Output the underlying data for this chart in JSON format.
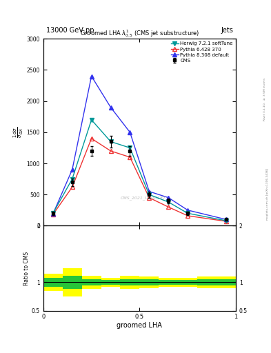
{
  "title_main": "13000 GeV pp",
  "title_right": "Jets",
  "plot_title": "Groomed LHA $\\lambda^{1}_{0.5}$ (CMS jet substructure)",
  "watermark": "CMS_2021_I1920187",
  "xlabel": "groomed LHA",
  "ylabel_ratio": "Ratio to CMS",
  "right_label": "Rivet 3.1.10, $\\geq$ 3.5M events",
  "right_label2": "mcplots.cern.ch [arXiv:1306.3436]",
  "x_centers": [
    0.05,
    0.15,
    0.25,
    0.35,
    0.45,
    0.55,
    0.65,
    0.75,
    0.95
  ],
  "x_edges": [
    0.0,
    0.1,
    0.2,
    0.3,
    0.4,
    0.5,
    0.6,
    0.7,
    0.8,
    1.0
  ],
  "cms_values": [
    200,
    700,
    1200,
    1350,
    1200,
    500,
    400,
    200,
    100
  ],
  "cms_errors": [
    30,
    60,
    80,
    90,
    80,
    50,
    40,
    30,
    20
  ],
  "herwig_values": [
    200,
    750,
    1700,
    1350,
    1250,
    500,
    380,
    200,
    80
  ],
  "pythia6_values": [
    180,
    620,
    1400,
    1200,
    1100,
    450,
    300,
    160,
    70
  ],
  "pythia8_values": [
    190,
    900,
    2400,
    1900,
    1500,
    550,
    450,
    250,
    100
  ],
  "ratio_yellow_lo": [
    0.85,
    0.75,
    0.88,
    0.92,
    0.88,
    0.9,
    0.92,
    0.92,
    0.9
  ],
  "ratio_yellow_hi": [
    1.15,
    1.25,
    1.12,
    1.08,
    1.12,
    1.1,
    1.08,
    1.08,
    1.1
  ],
  "ratio_green_lo": [
    0.92,
    0.88,
    0.94,
    0.96,
    0.94,
    0.95,
    0.96,
    0.96,
    0.95
  ],
  "ratio_green_hi": [
    1.08,
    1.12,
    1.06,
    1.04,
    1.06,
    1.05,
    1.04,
    1.04,
    1.05
  ],
  "cms_color": "#000000",
  "herwig_color": "#009999",
  "pythia6_color": "#EE3333",
  "pythia8_color": "#3333EE",
  "yellow_band_color": "#FFFF00",
  "green_band_color": "#00BB44",
  "ylim_main": [
    0,
    3000
  ],
  "ylim_ratio": [
    0.5,
    2.0
  ],
  "xlim": [
    0.0,
    1.0
  ],
  "yticks_main": [
    0,
    500,
    1000,
    1500,
    2000,
    2500,
    3000
  ],
  "ytick_labels_main": [
    "0",
    "500",
    "1000",
    "1500",
    "2000",
    "2500",
    "3000"
  ],
  "xticks": [
    0.0,
    0.5,
    1.0
  ],
  "xtick_labels": [
    "0",
    "0.5",
    "1"
  ]
}
